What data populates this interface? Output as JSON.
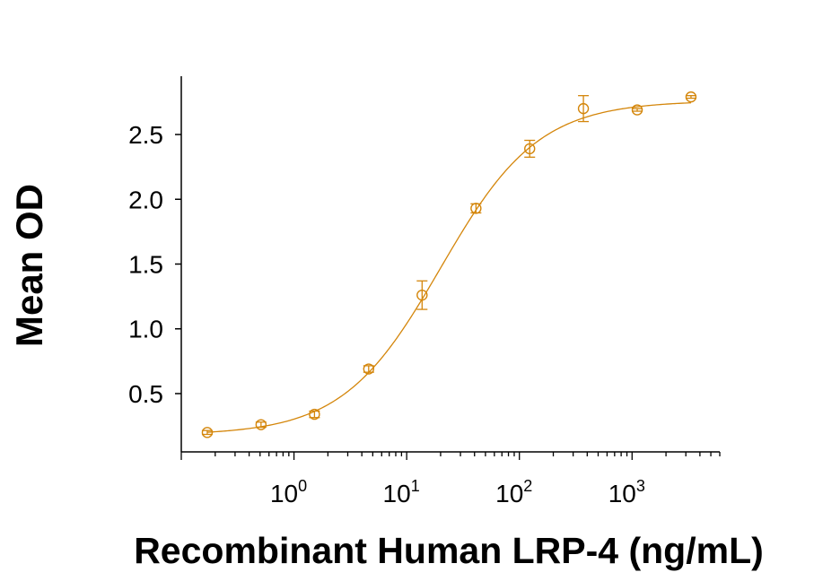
{
  "chart_data": {
    "type": "scatter",
    "title": "",
    "xlabel": "Recombinant Human LRP-4 (ng/mL)",
    "ylabel": "Mean OD",
    "x_scale": "log10",
    "xlim": [
      0.1,
      6000
    ],
    "ylim": [
      0.05,
      2.95
    ],
    "x_ticks": [
      {
        "value": 1,
        "base": "10",
        "exp": "0"
      },
      {
        "value": 10,
        "base": "10",
        "exp": "1"
      },
      {
        "value": 100,
        "base": "10",
        "exp": "2"
      },
      {
        "value": 1000,
        "base": "10",
        "exp": "3"
      }
    ],
    "y_ticks": [
      {
        "value": 0.5,
        "label": "0.5"
      },
      {
        "value": 1.0,
        "label": "1.0"
      },
      {
        "value": 1.5,
        "label": "1.5"
      },
      {
        "value": 2.0,
        "label": "2.0"
      },
      {
        "value": 2.5,
        "label": "2.5"
      }
    ],
    "grid": false,
    "color": "#D4860B",
    "points": [
      {
        "x": 0.17,
        "y": 0.2,
        "err": 0.015
      },
      {
        "x": 0.51,
        "y": 0.26,
        "err": 0.02
      },
      {
        "x": 1.52,
        "y": 0.34,
        "err": 0.025
      },
      {
        "x": 4.6,
        "y": 0.69,
        "err": 0.025
      },
      {
        "x": 13.7,
        "y": 1.26,
        "err": 0.11
      },
      {
        "x": 41.2,
        "y": 1.93,
        "err": 0.035
      },
      {
        "x": 123.5,
        "y": 2.39,
        "err": 0.065
      },
      {
        "x": 370,
        "y": 2.7,
        "err": 0.1
      },
      {
        "x": 1111,
        "y": 2.69,
        "err": 0.01
      },
      {
        "x": 3333,
        "y": 2.79,
        "err": 0.01
      }
    ],
    "fit": {
      "model": "4PL",
      "bottom": 0.18,
      "top": 2.76,
      "ec50": 20,
      "hill": 1.0
    }
  }
}
